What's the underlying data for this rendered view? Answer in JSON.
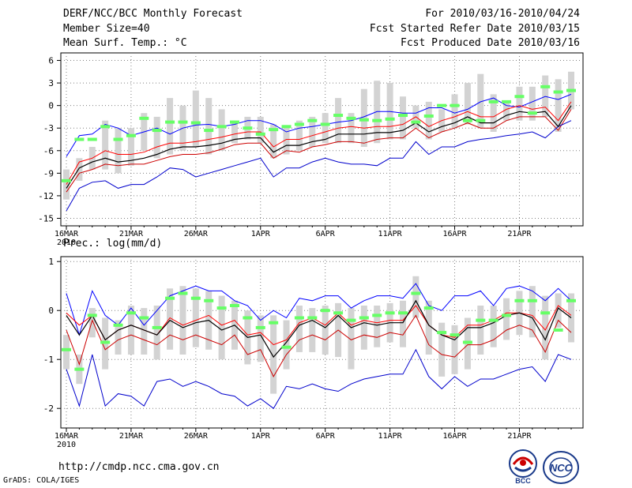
{
  "header": {
    "title": "DERF/NCC/BCC Monthly Forecast",
    "member": "Member Size=40",
    "variable": "Mean Surf. Temp.: °C",
    "period": "For 2010/03/16-2010/04/24",
    "started": "Fcst Started Refer Date 2010/03/15",
    "produced": "Fcst Produced Date 2010/03/16"
  },
  "footer": {
    "url": "http://cmdp.ncc.cma.gov.cn",
    "grads": "GrADS: COLA/IGES",
    "logo_bcc": "BCC",
    "logo_ncc": "NCC"
  },
  "colors": {
    "max_line": "#0000ff",
    "min_line": "#0000cc",
    "upper_line": "#ff0000",
    "lower_line": "#cc0000",
    "mean_line": "#000000",
    "box": "#d3d3d3",
    "marker": "#66ff66",
    "grid": "#808080"
  },
  "chart_data": [
    {
      "type": "line",
      "title": "Mean Surf. Temp.: °C",
      "ylim": [
        -16,
        7
      ],
      "yticks": [
        6,
        3,
        0,
        -3,
        -6,
        -9,
        -12,
        -15
      ],
      "xlabels": [
        "16MAR",
        "21MAR",
        "26MAR",
        "1APR",
        "6APR",
        "11APR",
        "16APR",
        "21APR"
      ],
      "xlabel_year": "2010",
      "days": 40,
      "series": [
        {
          "name": "max",
          "values": [
            -6.8,
            -4,
            -3.8,
            -2.5,
            -3,
            -4,
            -3.5,
            -3,
            -3.8,
            -3,
            -2.6,
            -2.5,
            -2.8,
            -2.5,
            -2,
            -2,
            -2.5,
            -3.5,
            -3,
            -2.8,
            -2.5,
            -2.2,
            -2,
            -1.5,
            -0.8,
            -0.8,
            -1,
            -1,
            -0.3,
            -0.3,
            -1,
            -0.5,
            0.5,
            1,
            0,
            -0.2,
            0.5,
            1.2,
            0.8,
            1.5
          ]
        },
        {
          "name": "upper",
          "values": [
            -10.5,
            -7.5,
            -7,
            -6,
            -6.5,
            -6.5,
            -6.2,
            -5.5,
            -5,
            -5,
            -4.8,
            -4.5,
            -4.2,
            -3.8,
            -3.5,
            -3.5,
            -5.5,
            -4.5,
            -4.5,
            -4,
            -3.5,
            -3,
            -2.8,
            -3,
            -2.8,
            -2.8,
            -2.5,
            -1.5,
            -2.8,
            -2,
            -1.5,
            -0.8,
            -1.5,
            -1.5,
            -0.5,
            0,
            -0.5,
            -0.2,
            -2,
            0.5
          ]
        },
        {
          "name": "mean",
          "values": [
            -11,
            -8.3,
            -7.5,
            -7,
            -7.5,
            -7.3,
            -7,
            -6.5,
            -5.8,
            -5.5,
            -5.5,
            -5.3,
            -5,
            -4.5,
            -4.3,
            -4.3,
            -6.2,
            -5.3,
            -5.3,
            -4.8,
            -4.5,
            -3.8,
            -3.8,
            -3.8,
            -3.6,
            -3.6,
            -3.3,
            -2.3,
            -3.5,
            -2.8,
            -2.3,
            -1.5,
            -2.3,
            -2.3,
            -1.3,
            -0.8,
            -1,
            -0.8,
            -2.8,
            0
          ]
        },
        {
          "name": "lower",
          "values": [
            -11.5,
            -9,
            -8.5,
            -7.8,
            -8,
            -7.8,
            -7.8,
            -7.3,
            -6.8,
            -6.5,
            -6.5,
            -6.3,
            -5.8,
            -5.2,
            -5,
            -5,
            -7,
            -6,
            -6.2,
            -5.5,
            -5.2,
            -4.8,
            -4.8,
            -5,
            -4.5,
            -4.3,
            -4.3,
            -3,
            -4.3,
            -3.5,
            -3,
            -2.3,
            -3,
            -3,
            -2,
            -1.5,
            -1.5,
            -1.5,
            -3.3,
            -0.5
          ]
        },
        {
          "name": "min",
          "values": [
            -14,
            -11,
            -10.2,
            -10,
            -11,
            -10.5,
            -10.5,
            -9.5,
            -8.3,
            -8.5,
            -9.5,
            -9,
            -8.5,
            -8,
            -7.5,
            -7,
            -9.5,
            -8.3,
            -8.3,
            -7.5,
            -7,
            -7.5,
            -7.8,
            -7.8,
            -8,
            -7,
            -7,
            -4.8,
            -6.5,
            -5.5,
            -5.5,
            -4.8,
            -4.5,
            -4.3,
            -4,
            -3.8,
            -3.5,
            -4.3,
            -2.8,
            -2
          ]
        },
        {
          "name": "observed",
          "values": [
            -10,
            -4.5,
            -4.5,
            -2.8,
            -4.5,
            -4,
            -1.7,
            -3.3,
            -2.2,
            -2.2,
            -2.3,
            -3.3,
            -2.8,
            -2.2,
            -3,
            -3.8,
            -3.2,
            -2.8,
            -2.5,
            -2,
            -2.5,
            -1.3,
            -1.7,
            -1.9,
            -2,
            -1.8,
            -1.3,
            -2.2,
            -1.4,
            0,
            0,
            -2,
            -2,
            0.5,
            0.5,
            1.2,
            -1,
            2.5,
            1.8,
            2
          ]
        },
        {
          "name": "box_top",
          "values": [
            -8.5,
            -7,
            -5.5,
            -2,
            -3,
            -3,
            -1,
            -1.5,
            1,
            0,
            2,
            1,
            -0.5,
            -2,
            -1.5,
            -1.5,
            -2.5,
            -2.8,
            -2,
            -1.5,
            -1,
            1,
            -1,
            2.2,
            3.3,
            3,
            1.2,
            0,
            0.5,
            -0.5,
            1.5,
            3,
            4.2,
            1.5,
            0.5,
            2.5,
            2.5,
            4,
            3.5,
            4.5
          ]
        },
        {
          "name": "box_bottom",
          "values": [
            -12.5,
            -10,
            -8.5,
            -8.5,
            -9,
            -8,
            -6,
            -7,
            -6.5,
            -6,
            -5.5,
            -6.5,
            -6,
            -5,
            -4.5,
            -5,
            -7,
            -6.5,
            -6,
            -5.5,
            -5,
            -5,
            -5,
            -5.5,
            -5,
            -4.5,
            -4.5,
            -3,
            -4.5,
            -3.5,
            -3,
            -2.5,
            -3,
            -3.5,
            -2,
            -2,
            -2,
            -1.5,
            -3.5,
            -0.5
          ]
        }
      ]
    },
    {
      "type": "line",
      "title": "Prec.: log(mm/d)",
      "ylim": [
        -2.4,
        1.1
      ],
      "yticks": [
        1,
        0,
        -1,
        -2
      ],
      "xlabels": [
        "16MAR",
        "21MAR",
        "26MAR",
        "1APR",
        "6APR",
        "11APR",
        "16APR",
        "21APR"
      ],
      "xlabel_year": "2010",
      "days": 40,
      "series": [
        {
          "name": "max",
          "values": [
            0.35,
            -0.5,
            0.4,
            -0.1,
            -0.3,
            0.05,
            -0.3,
            0,
            0.3,
            0.4,
            0.5,
            0.4,
            0.4,
            0.2,
            0.1,
            -0.2,
            0,
            -0.15,
            0.25,
            0.2,
            0.3,
            0.3,
            0.05,
            0.2,
            0.3,
            0.3,
            0.25,
            0.55,
            0.1,
            0,
            0.3,
            0.3,
            0.4,
            0.1,
            0.45,
            0.5,
            0.4,
            0.2,
            0.45,
            0.2
          ]
        },
        {
          "name": "upper",
          "values": [
            -0.05,
            -0.3,
            -0.1,
            -0.6,
            -0.4,
            -0.3,
            -0.4,
            -0.5,
            -0.15,
            -0.3,
            -0.2,
            -0.1,
            -0.3,
            -0.2,
            -0.5,
            -0.45,
            -0.7,
            -0.6,
            -0.25,
            -0.15,
            -0.3,
            -0.05,
            -0.3,
            -0.2,
            -0.25,
            -0.2,
            -0.2,
            0.1,
            -0.3,
            -0.5,
            -0.55,
            -0.3,
            -0.3,
            -0.2,
            -0.05,
            -0.05,
            -0.1,
            -0.4,
            0.1,
            -0.1
          ]
        },
        {
          "name": "mean",
          "values": [
            -0.1,
            -0.5,
            -0.1,
            -0.6,
            -0.4,
            -0.3,
            -0.4,
            -0.5,
            -0.2,
            -0.35,
            -0.25,
            -0.2,
            -0.4,
            -0.3,
            -0.55,
            -0.5,
            -0.95,
            -0.65,
            -0.3,
            -0.2,
            -0.35,
            -0.1,
            -0.35,
            -0.25,
            -0.3,
            -0.25,
            -0.25,
            0.2,
            -0.3,
            -0.5,
            -0.6,
            -0.35,
            -0.35,
            -0.25,
            -0.1,
            -0.05,
            -0.15,
            -0.6,
            0.05,
            -0.15
          ]
        },
        {
          "name": "lower",
          "values": [
            -0.4,
            -1.1,
            -0.2,
            -0.8,
            -0.6,
            -0.5,
            -0.6,
            -0.7,
            -0.5,
            -0.6,
            -0.5,
            -0.6,
            -0.7,
            -0.5,
            -0.9,
            -0.8,
            -1.35,
            -0.9,
            -0.6,
            -0.5,
            -0.6,
            -0.4,
            -0.6,
            -0.5,
            -0.55,
            -0.45,
            -0.5,
            -0.1,
            -0.7,
            -0.9,
            -0.95,
            -0.7,
            -0.7,
            -0.6,
            -0.4,
            -0.3,
            -0.4,
            -0.85,
            -0.2,
            -0.45
          ]
        },
        {
          "name": "min",
          "values": [
            -1.2,
            -1.95,
            -0.9,
            -1.95,
            -1.7,
            -1.75,
            -1.95,
            -1.45,
            -1.4,
            -1.55,
            -1.45,
            -1.55,
            -1.7,
            -1.75,
            -1.95,
            -1.8,
            -2.0,
            -1.55,
            -1.6,
            -1.5,
            -1.6,
            -1.65,
            -1.5,
            -1.4,
            -1.35,
            -1.3,
            -1.3,
            -0.8,
            -1.35,
            -1.6,
            -1.35,
            -1.55,
            -1.4,
            -1.4,
            -1.3,
            -1.2,
            -1.15,
            -1.45,
            -0.9,
            -1.0
          ]
        },
        {
          "name": "observed",
          "values": [
            -0.8,
            -1.2,
            -0.1,
            -0.65,
            -0.3,
            -0.05,
            -0.15,
            -0.35,
            0.25,
            0.35,
            0.25,
            0.2,
            0.05,
            0.1,
            -0.15,
            -0.35,
            -0.25,
            -0.75,
            -0.15,
            -0.15,
            0.0,
            -0.05,
            -0.2,
            -0.15,
            -0.1,
            -0.05,
            -0.05,
            0.35,
            0.05,
            -0.45,
            -0.5,
            -0.65,
            -0.2,
            -0.2,
            -0.1,
            0.2,
            0.2,
            -0.05,
            -0.4,
            0.2
          ]
        },
        {
          "name": "box_top",
          "values": [
            -0.5,
            -0.9,
            0.05,
            -0.15,
            -0.2,
            0.1,
            0.05,
            0.1,
            0.45,
            0.5,
            0.45,
            0.4,
            0.3,
            0.2,
            0.0,
            -0.1,
            -0.1,
            -0.2,
            0.1,
            0.05,
            0.1,
            0.15,
            0.05,
            0.1,
            0.1,
            0.15,
            0.2,
            0.7,
            0.2,
            -0.25,
            -0.3,
            -0.15,
            0.1,
            0.1,
            0.25,
            0.4,
            0.5,
            0.3,
            0.35,
            0.35
          ]
        },
        {
          "name": "box_bottom",
          "values": [
            -1.2,
            -1.5,
            -0.55,
            -1.2,
            -0.9,
            -0.9,
            -0.9,
            -1.0,
            -0.8,
            -0.9,
            -0.75,
            -0.8,
            -1.0,
            -0.8,
            -1.1,
            -1.05,
            -1.7,
            -1.2,
            -0.85,
            -0.85,
            -0.9,
            -0.95,
            -1.2,
            -0.8,
            -0.75,
            -0.65,
            -0.75,
            -0.15,
            -0.9,
            -1.35,
            -1.3,
            -1.2,
            -0.9,
            -0.75,
            -0.6,
            -0.5,
            -0.55,
            -1.0,
            -0.35,
            -0.65
          ]
        }
      ]
    }
  ]
}
